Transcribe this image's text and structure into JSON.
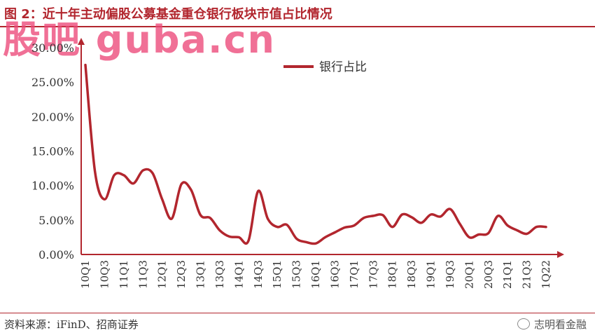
{
  "title": "图 2：近十年主动偏股公募基金重仓银行板块市值占比情况",
  "watermark": "股吧 guba.cn",
  "source": "资料来源：iFinD、招商证券",
  "brand": "志明看金融",
  "colors": {
    "accent": "#b2262e",
    "line": "#b2262e",
    "axis": "#b2262e"
  },
  "chart_data": {
    "type": "line",
    "title": "",
    "xlabel": "",
    "ylabel": "",
    "ylim": [
      0,
      0.3
    ],
    "yticks": [
      "0.00%",
      "5.00%",
      "10.00%",
      "15.00%",
      "20.00%",
      "25.00%",
      "30.00%"
    ],
    "grid": false,
    "legend": "top-center",
    "categories": [
      "10Q1",
      "10Q2",
      "10Q3",
      "10Q4",
      "11Q1",
      "11Q2",
      "11Q3",
      "11Q4",
      "12Q1",
      "12Q2",
      "12Q3",
      "12Q4",
      "13Q1",
      "13Q2",
      "13Q3",
      "13Q4",
      "14Q1",
      "14Q2",
      "14Q3",
      "14Q4",
      "15Q1",
      "15Q2",
      "15Q3",
      "15Q4",
      "16Q1",
      "16Q2",
      "16Q3",
      "16Q4",
      "17Q1",
      "17Q2",
      "17Q3",
      "17Q4",
      "18Q1",
      "18Q2",
      "18Q3",
      "18Q4",
      "19Q1",
      "19Q2",
      "19Q3",
      "19Q4",
      "20Q1",
      "20Q2",
      "20Q3",
      "20Q4",
      "21Q1",
      "21Q2",
      "21Q3",
      "21Q4",
      "22Q1"
    ],
    "tick_labels": [
      "10Q1",
      "10Q3",
      "11Q1",
      "11Q3",
      "12Q1",
      "12Q3",
      "13Q1",
      "13Q3",
      "14Q1",
      "14Q3",
      "15Q1",
      "15Q3",
      "16Q1",
      "16Q3",
      "17Q1",
      "17Q3",
      "18Q1",
      "18Q3",
      "19Q1",
      "19Q3",
      "20Q1",
      "20Q3",
      "21Q1",
      "21Q3",
      "1Q22"
    ],
    "series": [
      {
        "name": "银行占比",
        "values": [
          0.275,
          0.12,
          0.08,
          0.115,
          0.115,
          0.103,
          0.122,
          0.118,
          0.08,
          0.052,
          0.102,
          0.094,
          0.057,
          0.053,
          0.035,
          0.026,
          0.025,
          0.02,
          0.092,
          0.052,
          0.04,
          0.043,
          0.023,
          0.018,
          0.016,
          0.025,
          0.032,
          0.039,
          0.042,
          0.053,
          0.056,
          0.057,
          0.04,
          0.058,
          0.054,
          0.046,
          0.058,
          0.055,
          0.066,
          0.045,
          0.025,
          0.029,
          0.031,
          0.056,
          0.042,
          0.035,
          0.03,
          0.04,
          0.04
        ]
      }
    ]
  }
}
